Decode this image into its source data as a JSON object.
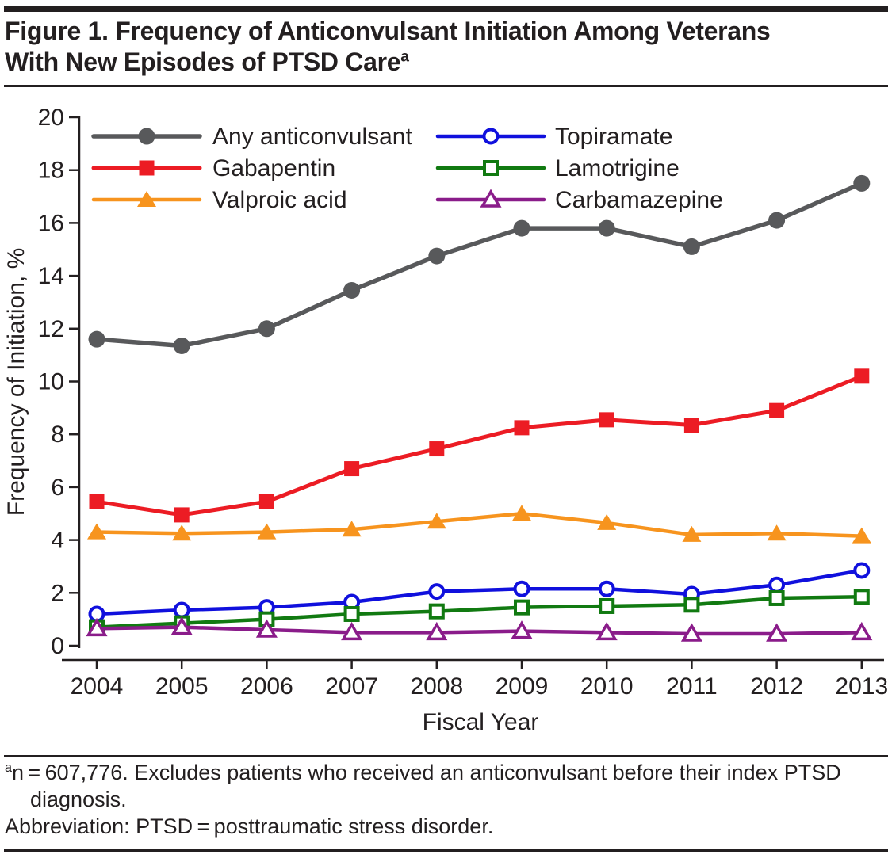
{
  "header": {
    "title_line1": "Figure 1. Frequency of Anticonvulsant Initiation Among Veterans",
    "title_line2": "With New Episodes of PTSD Care",
    "title_superscript": "a"
  },
  "chart_data": {
    "type": "line",
    "title": "",
    "x": [
      2004,
      2005,
      2006,
      2007,
      2008,
      2009,
      2010,
      2011,
      2012,
      2013
    ],
    "xlabel": "Fiscal Year",
    "ylabel": "Frequency of Initiation, %",
    "ylim": [
      0,
      20
    ],
    "ytick_interval": 2,
    "grid": false,
    "legend_position": "inside top, two columns",
    "series": [
      {
        "name": "Any anticonvulsant",
        "marker": "filled-circle",
        "color": "#58595B",
        "line_width": 5.5,
        "values": [
          11.6,
          11.35,
          12.0,
          13.45,
          14.75,
          15.8,
          15.8,
          15.1,
          16.1,
          17.5
        ]
      },
      {
        "name": "Gabapentin",
        "marker": "filled-square",
        "color": "#EC1C24",
        "line_width": 5,
        "values": [
          5.45,
          4.95,
          5.45,
          6.7,
          7.45,
          8.25,
          8.55,
          8.35,
          8.9,
          10.2
        ]
      },
      {
        "name": "Valproic acid",
        "marker": "filled-triangle",
        "color": "#F7941E",
        "line_width": 4.5,
        "values": [
          4.3,
          4.25,
          4.3,
          4.4,
          4.7,
          5.0,
          4.65,
          4.2,
          4.25,
          4.15
        ]
      },
      {
        "name": "Topiramate",
        "marker": "open-circle",
        "color": "#1010DD",
        "line_width": 4.5,
        "values": [
          1.2,
          1.35,
          1.45,
          1.65,
          2.05,
          2.15,
          2.15,
          1.95,
          2.3,
          2.85
        ]
      },
      {
        "name": "Lamotrigine",
        "marker": "open-square",
        "color": "#117A11",
        "line_width": 4.5,
        "values": [
          0.7,
          0.85,
          1.0,
          1.2,
          1.3,
          1.45,
          1.5,
          1.55,
          1.8,
          1.85
        ]
      },
      {
        "name": "Carbamazepine",
        "marker": "open-triangle",
        "color": "#8A1C8A",
        "line_width": 4.5,
        "values": [
          0.65,
          0.7,
          0.6,
          0.5,
          0.5,
          0.55,
          0.5,
          0.45,
          0.45,
          0.5
        ]
      }
    ],
    "legend_columns": [
      [
        "Any anticonvulsant",
        "Gabapentin",
        "Valproic acid"
      ],
      [
        "Topiramate",
        "Lamotrigine",
        "Carbamazepine"
      ]
    ]
  },
  "footnotes": {
    "note_superscript": "a",
    "note_text": "n = 607,776. Excludes patients who received an anticonvulsant before their index PTSD diagnosis.",
    "abbreviation_text": "Abbreviation: PTSD = posttraumatic stress disorder."
  },
  "colors": {
    "text": "#231F20",
    "axis": "#231F20",
    "background": "#FFFFFF"
  }
}
